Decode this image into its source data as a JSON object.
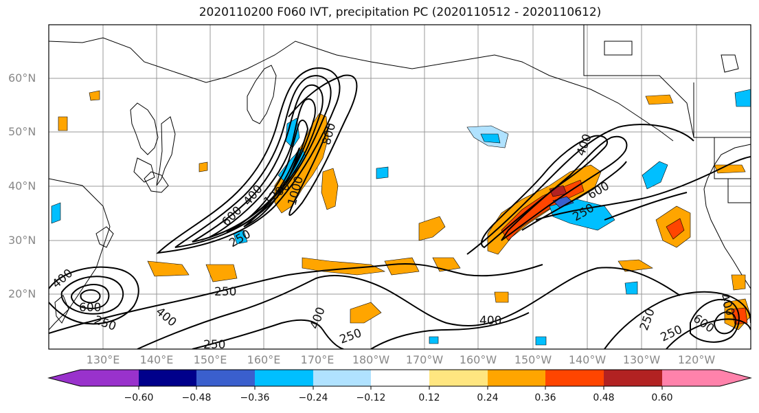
{
  "title": "2020110200 F060 IVT, precipitation PC (2020110512 - 2020110612)",
  "lat_labels": [
    "60°N",
    "50°N",
    "40°N",
    "30°N",
    "20°N"
  ],
  "lon_labels": [
    "130°E",
    "140°E",
    "150°E",
    "160°E",
    "170°E",
    "180°W",
    "170°W",
    "160°W",
    "150°W",
    "140°W",
    "130°W",
    "120°W"
  ],
  "contour_labels": {
    "c400_west": "400",
    "c600_west": "600",
    "c250_west": "250",
    "c800_jet": "800",
    "c400_jet": "400",
    "c600_jet": "600",
    "c200_jet": "1200",
    "c1000_jet": "1000",
    "c250_jet": "250",
    "c400_east": "400",
    "c600_east": "600",
    "c250_east": "250",
    "c250_s1": "250",
    "c400_s1": "400",
    "c400_s2": "400",
    "c250_s2": "250",
    "c250_s3": "250",
    "c400_s3": "400",
    "c250_se": "250",
    "c250_se2": "250",
    "c600_se": "600",
    "c400_se": "400"
  },
  "colorbar": {
    "tick_labels": [
      "−0.60",
      "−0.48",
      "−0.36",
      "−0.24",
      "−0.12",
      "0.12",
      "0.24",
      "0.36",
      "0.48",
      "0.60"
    ],
    "colors": [
      "#9932cc",
      "#00008b",
      "#3a5fcd",
      "#00bfff",
      "#b0e2ff",
      "#ffffff",
      "#ffe680",
      "#ffa500",
      "#ff4500",
      "#b22222",
      "#ff82ab"
    ],
    "extend": "both"
  }
}
